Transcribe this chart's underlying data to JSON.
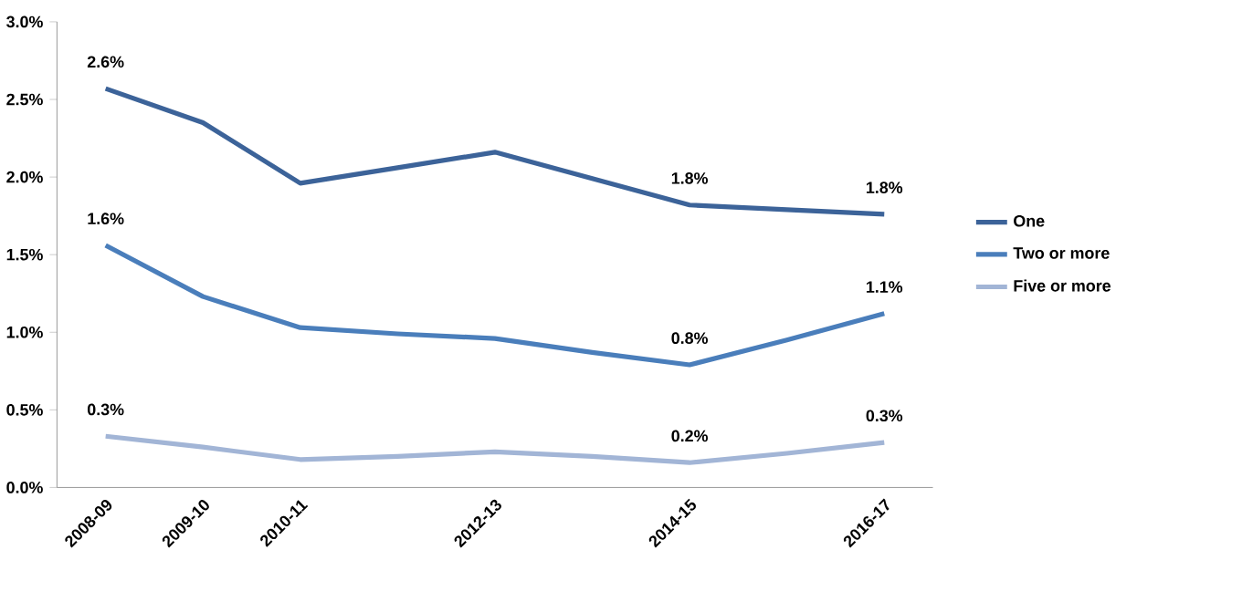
{
  "chart_data": {
    "type": "line",
    "categories": [
      "2008-09",
      "2009-10",
      "2010-11",
      null,
      "2012-13",
      null,
      "2014-15",
      null,
      "2016-17"
    ],
    "ylim": [
      0,
      3
    ],
    "yticks": [
      {
        "value": 0,
        "label": "0.0%"
      },
      {
        "value": 0.5,
        "label": "0.5%"
      },
      {
        "value": 1,
        "label": "1.0%"
      },
      {
        "value": 1.5,
        "label": "1.5%"
      },
      {
        "value": 2,
        "label": "2.0%"
      },
      {
        "value": 2.5,
        "label": "2.5%"
      },
      {
        "value": 3,
        "label": "3.0%"
      }
    ],
    "series": [
      {
        "name": "One",
        "color": "#3c6399",
        "values": [
          2.57,
          2.35,
          1.96,
          2.06,
          2.16,
          1.99,
          1.82,
          1.79,
          1.76
        ],
        "value_labels": [
          "2.6%",
          null,
          null,
          null,
          null,
          null,
          "1.8%",
          null,
          "1.8%"
        ]
      },
      {
        "name": "Two or more",
        "color": "#4a7ebb",
        "values": [
          1.56,
          1.23,
          1.03,
          0.99,
          0.96,
          0.87,
          0.79,
          0.95,
          1.12
        ],
        "value_labels": [
          "1.6%",
          null,
          null,
          null,
          null,
          null,
          "0.8%",
          null,
          "1.1%"
        ]
      },
      {
        "name": "Five or more",
        "color": "#a2b5d6",
        "values": [
          0.33,
          0.26,
          0.18,
          0.2,
          0.23,
          0.2,
          0.16,
          0.22,
          0.29
        ],
        "value_labels": [
          "0.3%",
          null,
          null,
          null,
          null,
          null,
          "0.2%",
          null,
          "0.3%"
        ]
      }
    ],
    "legend": "right",
    "marker": "none",
    "line_style": "solid"
  }
}
